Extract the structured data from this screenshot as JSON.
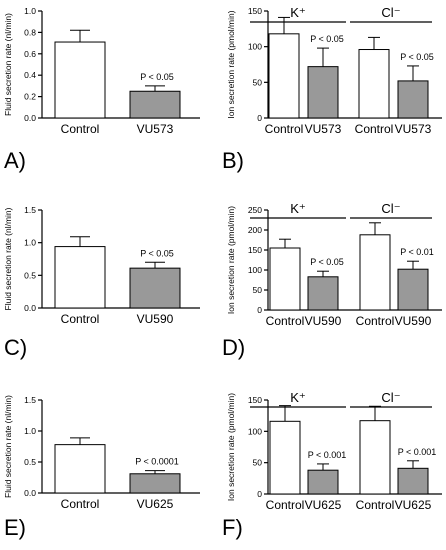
{
  "colors": {
    "control_bar": "#ffffff",
    "treated_bar": "#999999",
    "ink": "#000000"
  },
  "chart_data": [
    {
      "panel": "A)",
      "type": "bar",
      "ylabel": "Fluid secretion rate  (nl/min)",
      "ylim": [
        0,
        1.0
      ],
      "yticks": [
        "0.0",
        "0.2",
        "0.4",
        "0.6",
        "0.8",
        "1.0"
      ],
      "categories": [
        "Control",
        "VU573"
      ],
      "values": [
        0.71,
        0.25
      ],
      "errors": [
        0.11,
        0.05
      ],
      "annotations": [
        "",
        "P < 0.05"
      ]
    },
    {
      "panel": "B)",
      "type": "bar",
      "ylabel": "Ion secretion rate   (pmol/min)",
      "ylim": [
        0,
        150
      ],
      "yticks": [
        "0",
        "50",
        "100",
        "150"
      ],
      "groups": [
        "K⁺",
        "Cl⁻"
      ],
      "categories": [
        "Control",
        "VU573",
        "Control",
        "VU573"
      ],
      "values": [
        118,
        72,
        96,
        52
      ],
      "errors": [
        23,
        26,
        17,
        21
      ],
      "annotations": [
        "",
        "P < 0.05",
        "",
        "P < 0.05"
      ]
    },
    {
      "panel": "C)",
      "type": "bar",
      "ylabel": "Fluid secretion rate  (nl/min)",
      "ylim": [
        0,
        1.5
      ],
      "yticks": [
        "0.0",
        "0.5",
        "1.0",
        "1.5"
      ],
      "categories": [
        "Control",
        "VU590"
      ],
      "values": [
        0.94,
        0.61
      ],
      "errors": [
        0.15,
        0.09
      ],
      "annotations": [
        "",
        "P < 0.05"
      ]
    },
    {
      "panel": "D)",
      "type": "bar",
      "ylabel": "Ion secretion rate  (pmol/min)",
      "ylim": [
        0,
        250
      ],
      "yticks": [
        "0",
        "50",
        "100",
        "150",
        "200",
        "250"
      ],
      "groups": [
        "K⁺",
        "Cl⁻"
      ],
      "categories": [
        "Control",
        "VU590",
        "Control",
        "VU590"
      ],
      "values": [
        155,
        83,
        188,
        102
      ],
      "errors": [
        22,
        14,
        30,
        20
      ],
      "annotations": [
        "",
        "P < 0.05",
        "",
        "P < 0.01"
      ]
    },
    {
      "panel": "E)",
      "type": "bar",
      "ylabel": "Fluid secretion rate  (nl/min)",
      "ylim": [
        0,
        1.5
      ],
      "yticks": [
        "0.0",
        "0.5",
        "1.0",
        "1.5"
      ],
      "categories": [
        "Control",
        "VU625"
      ],
      "values": [
        0.78,
        0.31
      ],
      "errors": [
        0.11,
        0.05
      ],
      "annotations": [
        "",
        "P < 0.0001"
      ]
    },
    {
      "panel": "F)",
      "type": "bar",
      "ylabel": "Ion secretion rate  (pmol/min)",
      "ylim": [
        0,
        150
      ],
      "yticks": [
        "0",
        "50",
        "100",
        "150"
      ],
      "groups": [
        "K⁺",
        "Cl⁻"
      ],
      "categories": [
        "Control",
        "VU625",
        "Control",
        "VU625"
      ],
      "values": [
        116,
        38,
        117,
        41
      ],
      "errors": [
        25,
        10,
        23,
        12
      ],
      "annotations": [
        "",
        "P < 0.001",
        "",
        "P < 0.001"
      ]
    }
  ]
}
